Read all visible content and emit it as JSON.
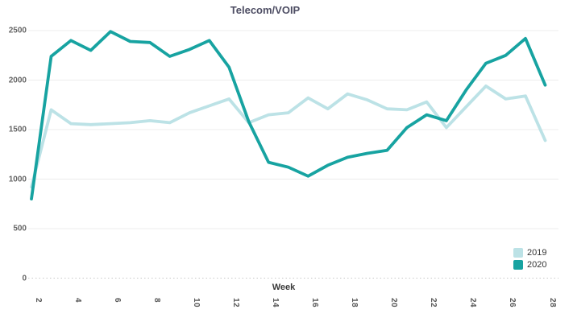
{
  "title": "Telecom/VOIP",
  "chart_data": {
    "type": "line",
    "title": "Telecom/VOIP",
    "xlabel": "Week",
    "ylabel": "",
    "x": [
      2,
      3,
      4,
      5,
      6,
      7,
      8,
      9,
      10,
      11,
      12,
      13,
      14,
      15,
      16,
      17,
      18,
      19,
      20,
      21,
      22,
      23,
      24,
      25,
      26,
      27,
      28
    ],
    "x_ticks": [
      2,
      4,
      6,
      8,
      10,
      12,
      14,
      16,
      18,
      20,
      22,
      24,
      26,
      28
    ],
    "y_ticks": [
      0,
      500,
      1000,
      1500,
      2000,
      2500
    ],
    "ylim": [
      0,
      2500
    ],
    "xlim": [
      2,
      28
    ],
    "grid": "horizontal",
    "zero_line_style": "dotted",
    "legend_position": "bottom-right",
    "series": [
      {
        "name": "2019",
        "color": "#bce2e6",
        "values": [
          920,
          1700,
          1560,
          1550,
          1560,
          1570,
          1590,
          1570,
          1670,
          1740,
          1810,
          1570,
          1650,
          1670,
          1820,
          1710,
          1860,
          1800,
          1710,
          1700,
          1780,
          1520,
          1730,
          1940,
          1810,
          1840,
          1390
        ]
      },
      {
        "name": "2020",
        "color": "#17a3a1",
        "values": [
          800,
          2240,
          2400,
          2300,
          2490,
          2390,
          2380,
          2240,
          2310,
          2400,
          2130,
          1580,
          1170,
          1120,
          1030,
          1140,
          1220,
          1260,
          1290,
          1520,
          1650,
          1590,
          1900,
          2170,
          2250,
          2420,
          1950
        ]
      }
    ]
  },
  "legend": {
    "items": [
      {
        "label": "2019",
        "color": "#bce2e6"
      },
      {
        "label": "2020",
        "color": "#17a3a1"
      }
    ]
  },
  "colors": {
    "grid_line": "#ececec",
    "zero_line": "#c8c8c8",
    "title_text": "#4d4d63",
    "axis_text": "#646464"
  }
}
